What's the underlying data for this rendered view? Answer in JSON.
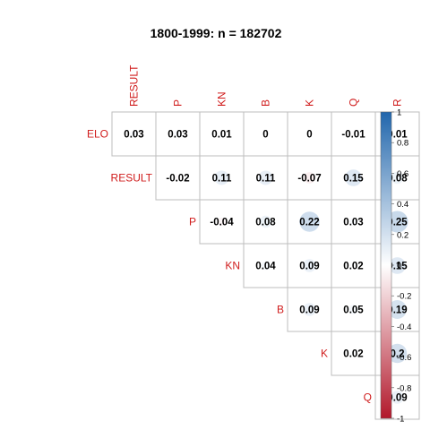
{
  "chart_data": {
    "type": "heatmap",
    "subtype": "correlation-matrix-upper",
    "title": "1800-1999: n = 182702",
    "row_labels": [
      "ELO",
      "RESULT",
      "P",
      "KN",
      "B",
      "K",
      "Q"
    ],
    "col_labels": [
      "RESULT",
      "P",
      "KN",
      "B",
      "K",
      "Q",
      "R"
    ],
    "cells": [
      [
        0.03,
        0.03,
        0.01,
        0,
        0,
        -0.01,
        0.01
      ],
      [
        null,
        -0.02,
        0.11,
        0.11,
        -0.07,
        0.15,
        0.08
      ],
      [
        null,
        null,
        -0.04,
        0.08,
        0.22,
        0.03,
        0.25
      ],
      [
        null,
        null,
        null,
        0.04,
        0.09,
        0.02,
        0.15
      ],
      [
        null,
        null,
        null,
        null,
        0.09,
        0.05,
        0.19
      ],
      [
        null,
        null,
        null,
        null,
        null,
        0.02,
        0.2
      ],
      [
        null,
        null,
        null,
        null,
        null,
        null,
        0.09
      ]
    ],
    "cell_labels": [
      [
        "0.03",
        "0.03",
        "0.01",
        "0",
        "0",
        "-0.01",
        "0.01"
      ],
      [
        "",
        "-0.02",
        "0.11",
        "0.11",
        "-0.07",
        "0.15",
        "0.08"
      ],
      [
        "",
        "",
        "-0.04",
        "0.08",
        "0.22",
        "0.03",
        "0.25"
      ],
      [
        "",
        "",
        "",
        "0.04",
        "0.09",
        "0.02",
        "0.15"
      ],
      [
        "",
        "",
        "",
        "",
        "0.09",
        "0.05",
        "0.19"
      ],
      [
        "",
        "",
        "",
        "",
        "",
        "0.02",
        "0.2"
      ],
      [
        "",
        "",
        "",
        "",
        "",
        "",
        "0.09"
      ]
    ],
    "colorbar": {
      "range": [
        -1,
        1
      ],
      "ticks": [
        "1",
        "0.8",
        "0.6",
        "0.4",
        "0.2",
        "0",
        "-0.2",
        "-0.4",
        "-0.6",
        "-0.8",
        "-1"
      ],
      "low_color": "#b2182b",
      "mid_color": "#ffffff",
      "high_color": "#2166ac"
    },
    "label_color": "#d01c1c",
    "grid": true
  }
}
